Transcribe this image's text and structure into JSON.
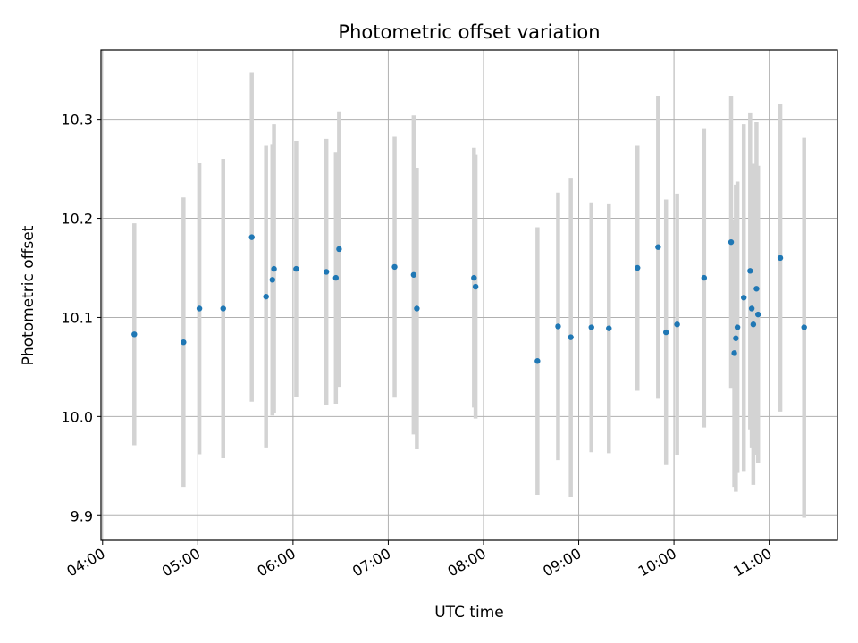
{
  "chart_data": {
    "type": "scatter",
    "title": "Photometric offset variation",
    "xlabel": "UTC time",
    "ylabel": "Photometric offset",
    "x_ticks": [
      "04:00",
      "05:00",
      "06:00",
      "07:00",
      "08:00",
      "09:00",
      "10:00",
      "11:00"
    ],
    "y_ticks": [
      "9.9",
      "10.0",
      "10.1",
      "10.2",
      "10.3"
    ],
    "xlim": [
      "03:59",
      "11:43"
    ],
    "ylim": [
      9.875,
      10.37
    ],
    "grid": true,
    "series": [
      {
        "color": "#1f77b4",
        "errorbar_color": "#d3d3d3",
        "points": [
          {
            "x": "04:20",
            "y": 10.083,
            "yerr": 0.112
          },
          {
            "x": "04:51",
            "y": 10.075,
            "yerr": 0.146
          },
          {
            "x": "05:01",
            "y": 10.109,
            "yerr": 0.147
          },
          {
            "x": "05:16",
            "y": 10.109,
            "yerr": 0.151
          },
          {
            "x": "05:34",
            "y": 10.181,
            "yerr": 0.166
          },
          {
            "x": "05:43",
            "y": 10.121,
            "yerr": 0.153
          },
          {
            "x": "05:47",
            "y": 10.138,
            "yerr": 0.137
          },
          {
            "x": "05:48",
            "y": 10.149,
            "yerr": 0.146
          },
          {
            "x": "06:02",
            "y": 10.149,
            "yerr": 0.129
          },
          {
            "x": "06:21",
            "y": 10.146,
            "yerr": 0.134
          },
          {
            "x": "06:27",
            "y": 10.14,
            "yerr": 0.127
          },
          {
            "x": "06:29",
            "y": 10.169,
            "yerr": 0.139
          },
          {
            "x": "07:04",
            "y": 10.151,
            "yerr": 0.132
          },
          {
            "x": "07:16",
            "y": 10.143,
            "yerr": 0.161
          },
          {
            "x": "07:18",
            "y": 10.109,
            "yerr": 0.142
          },
          {
            "x": "07:54",
            "y": 10.14,
            "yerr": 0.131
          },
          {
            "x": "07:55",
            "y": 10.131,
            "yerr": 0.133
          },
          {
            "x": "08:34",
            "y": 10.056,
            "yerr": 0.135
          },
          {
            "x": "08:47",
            "y": 10.091,
            "yerr": 0.135
          },
          {
            "x": "08:55",
            "y": 10.08,
            "yerr": 0.161
          },
          {
            "x": "09:08",
            "y": 10.09,
            "yerr": 0.126
          },
          {
            "x": "09:19",
            "y": 10.089,
            "yerr": 0.126
          },
          {
            "x": "09:37",
            "y": 10.15,
            "yerr": 0.124
          },
          {
            "x": "09:50",
            "y": 10.171,
            "yerr": 0.153
          },
          {
            "x": "09:55",
            "y": 10.085,
            "yerr": 0.134
          },
          {
            "x": "10:02",
            "y": 10.093,
            "yerr": 0.132
          },
          {
            "x": "10:19",
            "y": 10.14,
            "yerr": 0.151
          },
          {
            "x": "10:36",
            "y": 10.176,
            "yerr": 0.148
          },
          {
            "x": "10:38",
            "y": 10.064,
            "yerr": 0.135
          },
          {
            "x": "10:39",
            "y": 10.079,
            "yerr": 0.155
          },
          {
            "x": "10:40",
            "y": 10.09,
            "yerr": 0.147
          },
          {
            "x": "10:44",
            "y": 10.12,
            "yerr": 0.175
          },
          {
            "x": "10:48",
            "y": 10.147,
            "yerr": 0.16
          },
          {
            "x": "10:49",
            "y": 10.109,
            "yerr": 0.141
          },
          {
            "x": "10:50",
            "y": 10.093,
            "yerr": 0.162
          },
          {
            "x": "10:52",
            "y": 10.129,
            "yerr": 0.168
          },
          {
            "x": "10:53",
            "y": 10.103,
            "yerr": 0.15
          },
          {
            "x": "11:07",
            "y": 10.16,
            "yerr": 0.155
          },
          {
            "x": "11:22",
            "y": 10.09,
            "yerr": 0.192
          }
        ]
      }
    ]
  }
}
